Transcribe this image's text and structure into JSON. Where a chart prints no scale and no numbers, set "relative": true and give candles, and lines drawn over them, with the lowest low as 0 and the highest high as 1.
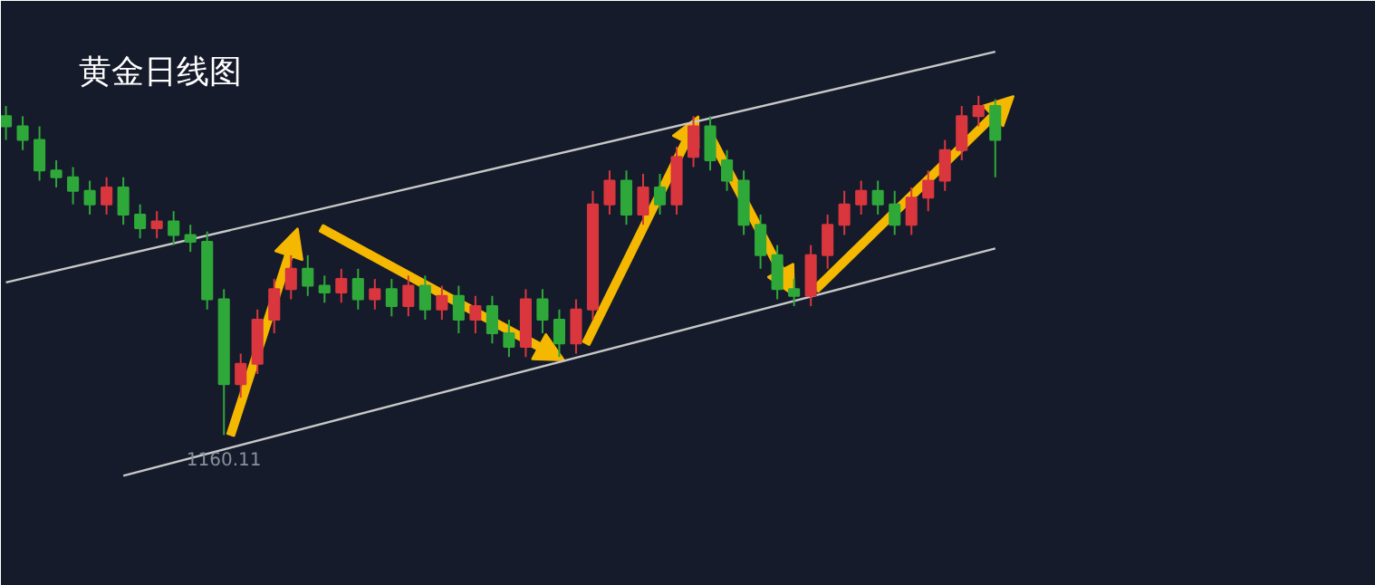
{
  "chart_data": {
    "type": "candlestick",
    "title": "黄金日线图",
    "relative": true,
    "categories": [
      null,
      null,
      null,
      null,
      null,
      null,
      null,
      null,
      null,
      null,
      null,
      null,
      null,
      null,
      null,
      null,
      null,
      null,
      null,
      null,
      null,
      null,
      null,
      null,
      null,
      null,
      null,
      null,
      null,
      null,
      null,
      null,
      null,
      null,
      null,
      null,
      null,
      null,
      null,
      null,
      null,
      null,
      null,
      null,
      null,
      null,
      null,
      null,
      null,
      null,
      null,
      null,
      null,
      null,
      null,
      null,
      null,
      null,
      null,
      null
    ],
    "ohlc": [
      [
        0.94,
        0.97,
        0.87,
        0.91
      ],
      [
        0.91,
        0.94,
        0.84,
        0.87
      ],
      [
        0.87,
        0.91,
        0.75,
        0.78
      ],
      [
        0.78,
        0.81,
        0.73,
        0.76
      ],
      [
        0.76,
        0.79,
        0.68,
        0.72
      ],
      [
        0.72,
        0.75,
        0.65,
        0.68
      ],
      [
        0.68,
        0.76,
        0.65,
        0.73
      ],
      [
        0.73,
        0.76,
        0.62,
        0.65
      ],
      [
        0.65,
        0.68,
        0.58,
        0.61
      ],
      [
        0.61,
        0.66,
        0.58,
        0.63
      ],
      [
        0.63,
        0.66,
        0.56,
        0.59
      ],
      [
        0.59,
        0.62,
        0.54,
        0.57
      ],
      [
        0.57,
        0.6,
        0.37,
        0.4
      ],
      [
        0.4,
        0.43,
        0,
        0.15
      ],
      [
        0.15,
        0.24,
        0.11,
        0.21
      ],
      [
        0.21,
        0.37,
        0.18,
        0.34
      ],
      [
        0.34,
        0.46,
        0.3,
        0.43
      ],
      [
        0.43,
        0.53,
        0.4,
        0.49
      ],
      [
        0.49,
        0.53,
        0.41,
        0.44
      ],
      [
        0.44,
        0.47,
        0.39,
        0.42
      ],
      [
        0.42,
        0.49,
        0.39,
        0.46
      ],
      [
        0.46,
        0.49,
        0.37,
        0.4
      ],
      [
        0.4,
        0.46,
        0.37,
        0.43
      ],
      [
        0.43,
        0.46,
        0.35,
        0.38
      ],
      [
        0.38,
        0.47,
        0.35,
        0.44
      ],
      [
        0.44,
        0.47,
        0.34,
        0.37
      ],
      [
        0.37,
        0.44,
        0.34,
        0.41
      ],
      [
        0.41,
        0.44,
        0.3,
        0.34
      ],
      [
        0.34,
        0.41,
        0.3,
        0.38
      ],
      [
        0.38,
        0.41,
        0.27,
        0.3
      ],
      [
        0.3,
        0.34,
        0.23,
        0.26
      ],
      [
        0.26,
        0.43,
        0.23,
        0.4
      ],
      [
        0.4,
        0.43,
        0.3,
        0.34
      ],
      [
        0.34,
        0.37,
        0.23,
        0.27
      ],
      [
        0.27,
        0.4,
        0.24,
        0.37
      ],
      [
        0.37,
        0.72,
        0.34,
        0.68
      ],
      [
        0.68,
        0.78,
        0.65,
        0.75
      ],
      [
        0.75,
        0.78,
        0.62,
        0.65
      ],
      [
        0.65,
        0.77,
        0.62,
        0.73
      ],
      [
        0.73,
        0.77,
        0.65,
        0.68
      ],
      [
        0.68,
        0.85,
        0.65,
        0.82
      ],
      [
        0.82,
        0.94,
        0.79,
        0.91
      ],
      [
        0.91,
        0.94,
        0.78,
        0.81
      ],
      [
        0.81,
        0.84,
        0.72,
        0.75
      ],
      [
        0.75,
        0.78,
        0.59,
        0.62
      ],
      [
        0.62,
        0.65,
        0.49,
        0.53
      ],
      [
        0.53,
        0.56,
        0.4,
        0.43
      ],
      [
        0.43,
        0.46,
        0.38,
        0.41
      ],
      [
        0.41,
        0.56,
        0.38,
        0.53
      ],
      [
        0.53,
        0.65,
        0.49,
        0.62
      ],
      [
        0.62,
        0.72,
        0.59,
        0.68
      ],
      [
        0.68,
        0.75,
        0.65,
        0.72
      ],
      [
        0.72,
        0.75,
        0.65,
        0.68
      ],
      [
        0.68,
        0.72,
        0.59,
        0.62
      ],
      [
        0.62,
        0.73,
        0.59,
        0.7
      ],
      [
        0.7,
        0.78,
        0.66,
        0.75
      ],
      [
        0.75,
        0.87,
        0.72,
        0.84
      ],
      [
        0.84,
        0.97,
        0.81,
        0.94
      ],
      [
        0.94,
        1,
        0.91,
        0.97
      ],
      [
        0.97,
        0.99,
        0.76,
        0.87
      ]
    ],
    "colors": [
      "#2fa83a",
      "#2fa83a",
      "#2fa83a",
      "#2fa83a",
      "#2fa83a",
      "#2fa83a",
      "#d9363e",
      "#2fa83a",
      "#2fa83a",
      "#d9363e",
      "#2fa83a",
      "#2fa83a",
      "#2fa83a",
      "#2fa83a",
      "#d9363e",
      "#d9363e",
      "#d9363e",
      "#d9363e",
      "#2fa83a",
      "#2fa83a",
      "#d9363e",
      "#2fa83a",
      "#d9363e",
      "#2fa83a",
      "#d9363e",
      "#2fa83a",
      "#d9363e",
      "#2fa83a",
      "#d9363e",
      "#2fa83a",
      "#2fa83a",
      "#d9363e",
      "#2fa83a",
      "#2fa83a",
      "#d9363e",
      "#d9363e",
      "#d9363e",
      "#2fa83a",
      "#d9363e",
      "#2fa83a",
      "#d9363e",
      "#d9363e",
      "#2fa83a",
      "#2fa83a",
      "#2fa83a",
      "#2fa83a",
      "#2fa83a",
      "#2fa83a",
      "#d9363e",
      "#d9363e",
      "#d9363e",
      "#d9363e",
      "#2fa83a",
      "#2fa83a",
      "#d9363e",
      "#d9363e",
      "#d9363e",
      "#d9363e",
      "#d9363e",
      "#2fa83a"
    ],
    "series": [
      {
        "type": "line",
        "color": "#c8c8c8",
        "values": [
          0.45,
          null,
          null,
          null,
          null,
          null,
          null,
          null,
          null,
          null,
          null,
          null,
          null,
          null,
          null,
          null,
          null,
          null,
          null,
          null,
          null,
          null,
          null,
          null,
          null,
          null,
          null,
          null,
          null,
          null,
          null,
          null,
          null,
          null,
          null,
          null,
          null,
          null,
          null,
          null,
          null,
          null,
          null,
          null,
          null,
          null,
          null,
          null,
          null,
          null,
          null,
          null,
          null,
          null,
          null,
          null,
          null,
          null,
          null,
          1.13
        ]
      },
      {
        "type": "line",
        "color": "#c8c8c8",
        "values": [
          null,
          null,
          null,
          null,
          null,
          null,
          null,
          -0.12,
          null,
          null,
          null,
          null,
          null,
          null,
          null,
          null,
          null,
          null,
          null,
          null,
          null,
          null,
          null,
          null,
          null,
          null,
          null,
          null,
          null,
          null,
          null,
          null,
          null,
          null,
          null,
          null,
          null,
          null,
          null,
          null,
          null,
          null,
          null,
          null,
          null,
          null,
          null,
          null,
          null,
          null,
          null,
          null,
          null,
          null,
          null,
          null,
          null,
          null,
          null,
          0.55
        ]
      }
    ],
    "annotations": [
      {
        "text": "1160.11",
        "y": 0
      }
    ]
  }
}
